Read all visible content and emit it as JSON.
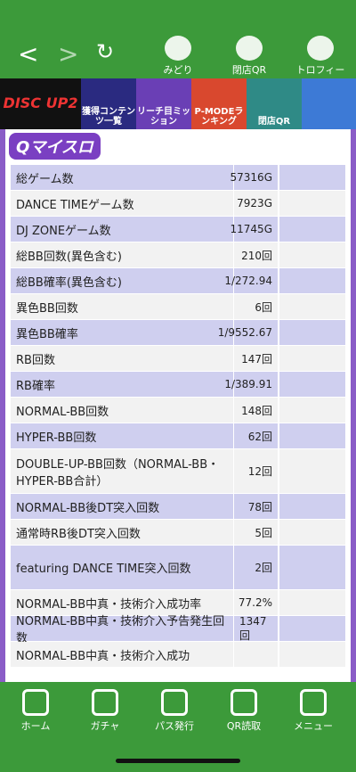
{
  "header": {
    "icons": [
      "みどり",
      "閉店QR",
      "トロフィー"
    ]
  },
  "banner": [
    {
      "label": "DISC UP2"
    },
    {
      "label": "獲得コンテンツ一覧"
    },
    {
      "label": "リーチ目ミッション"
    },
    {
      "label": "P-MODEランキング"
    },
    {
      "label": "閉店QR"
    }
  ],
  "logo": "Qマイスロ",
  "table": {
    "rows": [
      [
        "総ゲーム数",
        "57316G"
      ],
      [
        "DANCE TIMEゲーム数",
        "7923G"
      ],
      [
        "DJ ZONEゲーム数",
        "11745G"
      ],
      [
        "総BB回数(異色含む)",
        "210回"
      ],
      [
        "総BB確率(異色含む)",
        "1/272.94"
      ],
      [
        "異色BB回数",
        "6回"
      ],
      [
        "異色BB確率",
        "1/9552.67"
      ],
      [
        "RB回数",
        "147回"
      ],
      [
        "RB確率",
        "1/389.91"
      ],
      [
        "NORMAL-BB回数",
        "148回"
      ],
      [
        "HYPER-BB回数",
        "62回"
      ],
      [
        "DOUBLE-UP-BB回数（NORMAL-BB・HYPER-BB合計）",
        "12回"
      ],
      [
        "NORMAL-BB後DT突入回数",
        "78回"
      ],
      [
        "通常時RB後DT突入回数",
        "5回"
      ],
      [
        "featuring DANCE TIME突入回数",
        "2回"
      ],
      [
        "NORMAL-BB中真・技術介入成功率",
        "77.2%"
      ],
      [
        "NORMAL-BB中真・技術介入予告発生回数",
        "1347回"
      ],
      [
        "NORMAL-BB中真・技術介入成功"
      ]
    ]
  },
  "bottom_nav": [
    "ホーム",
    "ガチャ",
    "パス発行",
    "QR読取",
    "メニュー"
  ]
}
